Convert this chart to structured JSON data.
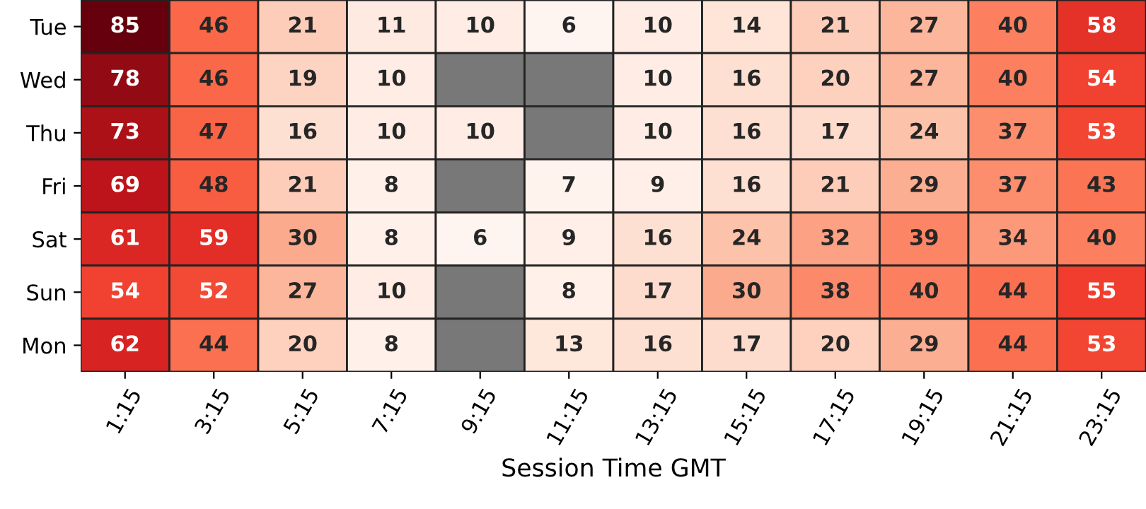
{
  "chart_data": {
    "type": "heatmap",
    "xlabel": "Session Time GMT",
    "categories": [
      "1:15",
      "3:15",
      "5:15",
      "7:15",
      "9:15",
      "11:15",
      "13:15",
      "15:15",
      "17:15",
      "19:15",
      "21:15",
      "23:15"
    ],
    "y_categories": [
      "Tue",
      "Wed",
      "Thu",
      "Fri",
      "Sat",
      "Sun",
      "Mon"
    ],
    "cells": [
      [
        85,
        46,
        21,
        11,
        10,
        6,
        10,
        14,
        21,
        27,
        40,
        58
      ],
      [
        78,
        46,
        19,
        10,
        null,
        null,
        10,
        16,
        20,
        27,
        40,
        54
      ],
      [
        73,
        47,
        16,
        10,
        10,
        null,
        10,
        16,
        17,
        24,
        37,
        53
      ],
      [
        69,
        48,
        21,
        8,
        null,
        7,
        9,
        16,
        21,
        29,
        37,
        43
      ],
      [
        61,
        59,
        30,
        8,
        6,
        9,
        16,
        24,
        32,
        39,
        34,
        40
      ],
      [
        54,
        52,
        27,
        10,
        null,
        8,
        17,
        30,
        38,
        40,
        44,
        55
      ],
      [
        62,
        44,
        20,
        8,
        null,
        13,
        16,
        17,
        20,
        29,
        44,
        53
      ]
    ],
    "data_labels": true
  }
}
